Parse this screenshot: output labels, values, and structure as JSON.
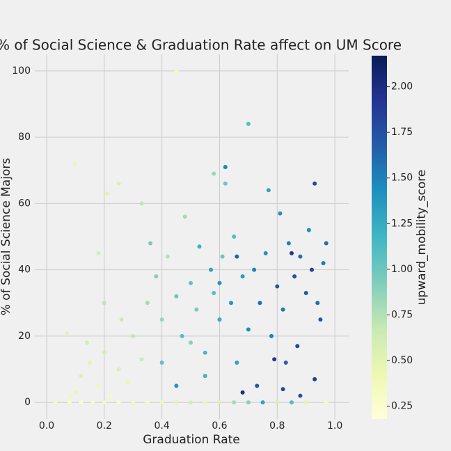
{
  "chart_data": {
    "type": "scatter",
    "title": "% of Social Science & Graduation Rate affect on UM Score",
    "xlabel": "Graduation Rate",
    "ylabel": "% of Social Science Majors",
    "x": [
      0.03,
      0.08,
      0.12,
      0.16,
      0.2,
      0.25,
      0.3,
      0.35,
      0.4,
      0.45,
      0.5,
      0.55,
      0.6,
      0.65,
      0.7,
      0.75,
      0.8,
      0.85,
      0.9,
      0.97,
      0.1,
      0.12,
      0.15,
      0.18,
      0.2,
      0.22,
      0.25,
      0.28,
      0.14,
      0.08,
      0.3,
      0.26,
      0.2,
      0.1,
      0.21,
      0.25,
      0.45,
      0.18,
      0.07,
      0.33,
      0.35,
      0.38,
      0.4,
      0.42,
      0.45,
      0.47,
      0.48,
      0.5,
      0.52,
      0.53,
      0.55,
      0.57,
      0.58,
      0.6,
      0.61,
      0.62,
      0.62,
      0.64,
      0.65,
      0.66,
      0.68,
      0.7,
      0.7,
      0.55,
      0.45,
      0.36,
      0.33,
      0.4,
      0.5,
      0.58,
      0.72,
      0.74,
      0.76,
      0.77,
      0.78,
      0.8,
      0.81,
      0.82,
      0.83,
      0.84,
      0.86,
      0.87,
      0.88,
      0.9,
      0.91,
      0.92,
      0.93,
      0.93,
      0.94,
      0.95,
      0.96,
      0.97,
      0.73,
      0.82,
      0.68,
      0.88,
      0.79,
      0.85,
      0.6,
      0.66
    ],
    "series": [
      {
        "values": [
          0,
          0,
          0,
          0,
          0,
          0,
          0,
          0,
          0,
          0,
          0,
          0,
          0,
          0,
          0,
          0,
          0,
          0,
          0,
          0,
          3,
          8,
          12,
          5,
          15,
          2,
          10,
          6,
          18,
          2,
          20,
          25,
          30,
          72,
          63,
          66,
          100,
          45,
          21,
          13,
          30,
          38,
          25,
          44,
          32,
          20,
          56,
          36,
          28,
          47,
          15,
          40,
          33,
          25,
          44,
          71,
          66,
          30,
          50,
          12,
          38,
          84,
          22,
          8,
          5,
          48,
          60,
          12,
          18,
          69,
          40,
          30,
          45,
          64,
          20,
          35,
          57,
          28,
          12,
          48,
          38,
          17,
          44,
          33,
          52,
          40,
          66,
          7,
          30,
          25,
          42,
          48,
          5,
          4,
          3,
          2,
          13,
          45,
          36,
          44
        ],
        "color_values": [
          0.35,
          0.3,
          0.25,
          0.3,
          0.35,
          0.3,
          0.4,
          0.35,
          0.45,
          0.5,
          0.6,
          0.45,
          0.55,
          0.8,
          0.9,
          1.3,
          0.6,
          1.1,
          0.5,
          0.35,
          0.45,
          0.55,
          0.5,
          0.4,
          0.6,
          0.35,
          0.55,
          0.45,
          0.6,
          0.4,
          0.7,
          0.65,
          0.7,
          0.45,
          0.5,
          0.55,
          0.35,
          0.6,
          0.5,
          0.65,
          0.8,
          0.9,
          0.85,
          0.75,
          1.0,
          1.1,
          0.8,
          1.05,
          0.95,
          1.2,
          1.15,
          1.3,
          1.1,
          1.25,
          1.0,
          1.5,
          1.0,
          1.4,
          1.1,
          1.3,
          1.35,
          1.1,
          1.45,
          1.2,
          1.4,
          0.95,
          0.7,
          1.05,
          0.9,
          0.85,
          1.5,
          1.6,
          1.4,
          1.3,
          1.5,
          1.7,
          1.4,
          1.55,
          1.65,
          1.5,
          1.75,
          1.8,
          1.6,
          1.7,
          1.45,
          1.85,
          1.8,
          1.9,
          1.6,
          1.7,
          1.55,
          1.6,
          1.7,
          1.8,
          2.0,
          1.75,
          1.9,
          1.9,
          1.4,
          1.65
        ]
      }
    ],
    "xlim": [
      -0.041,
      1.048
    ],
    "ylim": [
      -5,
      105
    ],
    "xticks": [
      {
        "value": 0,
        "label": "0.0"
      },
      0.2,
      0.4,
      0.6,
      0.8,
      {
        "value": 1,
        "label": "1.0"
      }
    ],
    "yticks": [
      0,
      20,
      40,
      60,
      80,
      100
    ],
    "grid": true,
    "colorbar": {
      "label": "upward_mobility_score",
      "lim": [
        0.18,
        2.17
      ],
      "ticks": [
        0.25,
        {
          "value": 0.5,
          "label": "0.50"
        },
        0.75,
        {
          "value": 1,
          "label": "1.00"
        },
        1.25,
        {
          "value": 1.5,
          "label": "1.50"
        },
        1.75,
        {
          "value": 2,
          "label": "2.00"
        }
      ],
      "colormap": [
        "#ffffd9",
        "#edf8b1",
        "#c7e9b4",
        "#7fcdbb",
        "#41b6c4",
        "#1d91c0",
        "#225ea8",
        "#253494",
        "#081d58"
      ]
    }
  }
}
